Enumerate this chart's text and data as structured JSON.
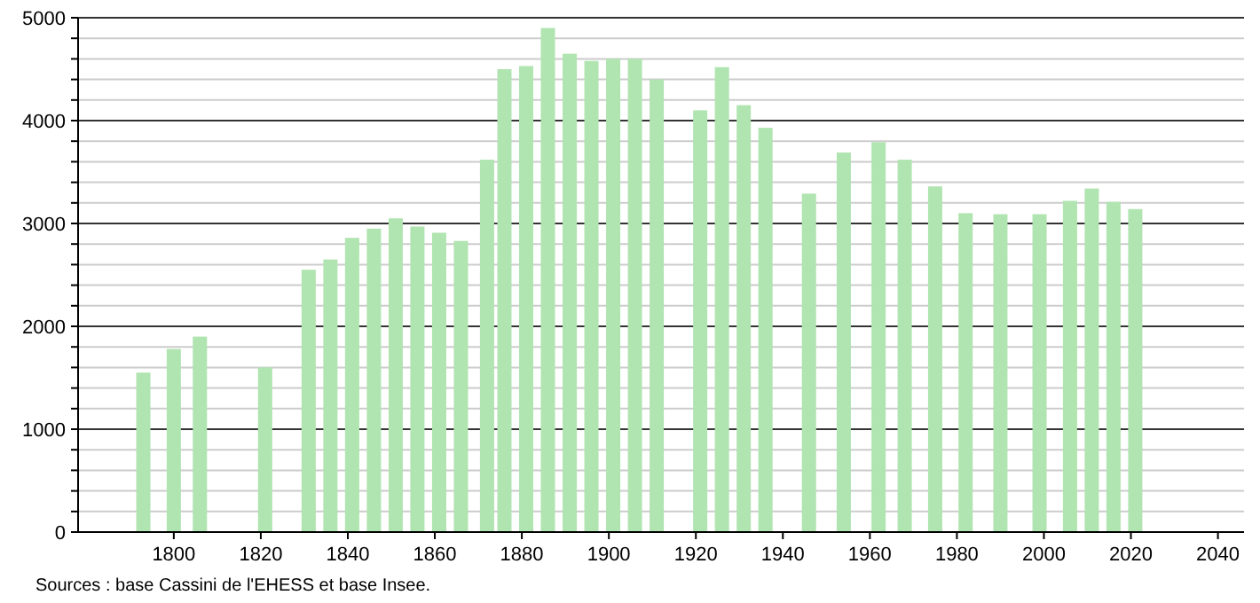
{
  "chart_data": {
    "type": "bar",
    "x": [
      1793,
      1800,
      1806,
      1821,
      1831,
      1836,
      1841,
      1846,
      1851,
      1856,
      1861,
      1866,
      1872,
      1876,
      1881,
      1886,
      1891,
      1896,
      1901,
      1906,
      1911,
      1921,
      1926,
      1931,
      1936,
      1946,
      1954,
      1962,
      1968,
      1975,
      1982,
      1990,
      1999,
      2006,
      2011,
      2016,
      2021
    ],
    "values": [
      1550,
      1780,
      1900,
      1600,
      2550,
      2650,
      2860,
      2950,
      3050,
      2970,
      2910,
      2830,
      3620,
      4500,
      4530,
      4900,
      4650,
      4580,
      4600,
      4600,
      4400,
      4100,
      4520,
      4150,
      3930,
      3290,
      3690,
      3790,
      3620,
      3360,
      3100,
      3090,
      3090,
      3220,
      3340,
      3210,
      3140
    ],
    "color": "#b0e4b0",
    "xlim": [
      1778,
      2046
    ],
    "xticks": [
      1800,
      1820,
      1840,
      1860,
      1880,
      1900,
      1920,
      1940,
      1960,
      1980,
      2000,
      2020,
      2040
    ],
    "ylim": [
      0,
      5000
    ],
    "yticks": [
      0,
      {
        "value": 200,
        "label": null
      },
      {
        "value": 400,
        "label": null
      },
      {
        "value": 600,
        "label": null
      },
      {
        "value": 800,
        "label": null
      },
      1000,
      {
        "value": 1200,
        "label": null
      },
      {
        "value": 1400,
        "label": null
      },
      {
        "value": 1600,
        "label": null
      },
      {
        "value": 1800,
        "label": null
      },
      2000,
      {
        "value": 2200,
        "label": null
      },
      {
        "value": 2400,
        "label": null
      },
      {
        "value": 2600,
        "label": null
      },
      {
        "value": 2800,
        "label": null
      },
      3000,
      {
        "value": 3200,
        "label": null
      },
      {
        "value": 3400,
        "label": null
      },
      {
        "value": 3600,
        "label": null
      },
      {
        "value": 3800,
        "label": null
      },
      4000,
      {
        "value": 4200,
        "label": null
      },
      {
        "value": 4400,
        "label": null
      },
      {
        "value": 4600,
        "label": null
      },
      {
        "value": 4800,
        "label": null
      },
      5000
    ],
    "grid": "y",
    "annotations": [
      "Sources : base Cassini de l'EHESS et base Insee."
    ]
  }
}
